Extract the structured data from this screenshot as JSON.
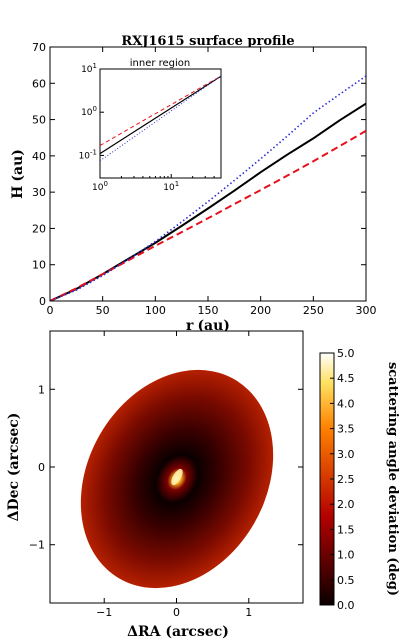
{
  "chart_data": [
    {
      "type": "line",
      "title": "RXJ1615 surface profile",
      "title_bold_part": "RXJ",
      "title_rest": "1615 surface profile",
      "xlabel_bold": "r",
      "xlabel_unit": "(au)",
      "ylabel_bold": "H",
      "ylabel_unit": "(au)",
      "xlim": [
        0,
        300
      ],
      "ylim": [
        0,
        70
      ],
      "xticks": [
        "0",
        "50",
        "100",
        "150",
        "200",
        "250",
        "300"
      ],
      "yticks": [
        "0",
        "10",
        "20",
        "30",
        "40",
        "50",
        "60",
        "70"
      ],
      "grid": false,
      "legend": "none",
      "series": [
        {
          "style": "solid",
          "color": "#000000",
          "x": [
            0,
            25,
            50,
            75,
            100,
            125,
            150,
            175,
            200,
            225,
            250,
            275,
            300
          ],
          "y": [
            0,
            3.3,
            7.4,
            11.7,
            16.0,
            20.7,
            25.5,
            30.4,
            35.5,
            40.3,
            44.8,
            49.8,
            54.4
          ]
        },
        {
          "style": "dashed",
          "color": "#e8101a",
          "x": [
            0,
            25,
            50,
            75,
            100,
            125,
            150,
            175,
            200,
            225,
            250,
            275,
            300
          ],
          "y": [
            0,
            3.5,
            7.4,
            11.3,
            15.2,
            19.0,
            22.8,
            26.7,
            30.6,
            34.5,
            38.5,
            42.7,
            46.9
          ]
        },
        {
          "style": "dotted",
          "color": "#2b2bd6",
          "x": [
            0,
            25,
            50,
            75,
            100,
            125,
            150,
            175,
            200,
            225,
            250,
            275,
            300
          ],
          "y": [
            0,
            3.0,
            7.0,
            11.6,
            16.4,
            21.8,
            27.4,
            33.2,
            39.2,
            45.4,
            51.8,
            57.0,
            62.0
          ]
        }
      ]
    },
    {
      "type": "line",
      "title": "inner region",
      "xscale": "log",
      "yscale": "log",
      "xlim": [
        1,
        50
      ],
      "ylim": [
        0.03,
        10
      ],
      "xticks": [
        "10^0",
        "10^1"
      ],
      "yticks": [
        "10^-1",
        "10^0",
        "10^1"
      ],
      "series": [
        {
          "style": "solid",
          "color": "#000000",
          "x": [
            1,
            50
          ],
          "y": [
            0.11,
            6.8
          ]
        },
        {
          "style": "dashed",
          "color": "#e8101a",
          "x": [
            1,
            50
          ],
          "y": [
            0.17,
            6.9
          ]
        },
        {
          "style": "dotted",
          "color": "#2b2bd6",
          "x": [
            1,
            50
          ],
          "y": [
            0.075,
            6.9
          ]
        }
      ]
    },
    {
      "type": "heatmap",
      "xlabel": "ΔRA (arcsec)",
      "xlabel_delta": "Δ",
      "xlabel_text": "RA (arcsec)",
      "ylabel": "ΔDec (arcsec)",
      "ylabel_delta": "Δ",
      "ylabel_text": "Dec (arcsec)",
      "xlim": [
        -1.75,
        1.75
      ],
      "ylim": [
        -1.75,
        1.75
      ],
      "xticks": [
        "−1",
        "0",
        "1"
      ],
      "yticks": [
        "−1",
        "0",
        "1"
      ],
      "colormap": "hot",
      "colorbar": {
        "label": "scattering angle deviation (deg)",
        "range": [
          0,
          5
        ],
        "ticks": [
          "0.0",
          "0.5",
          "1.0",
          "1.5",
          "2.0",
          "2.5",
          "3.0",
          "3.5",
          "4.0",
          "4.5",
          "5.0"
        ]
      },
      "disk": {
        "center": [
          0,
          0
        ],
        "semi_major_arcsec": 1.25,
        "semi_minor_arcsec": 0.87,
        "position_angle_deg": 30
      },
      "value_range_shown": [
        0,
        5
      ]
    }
  ]
}
